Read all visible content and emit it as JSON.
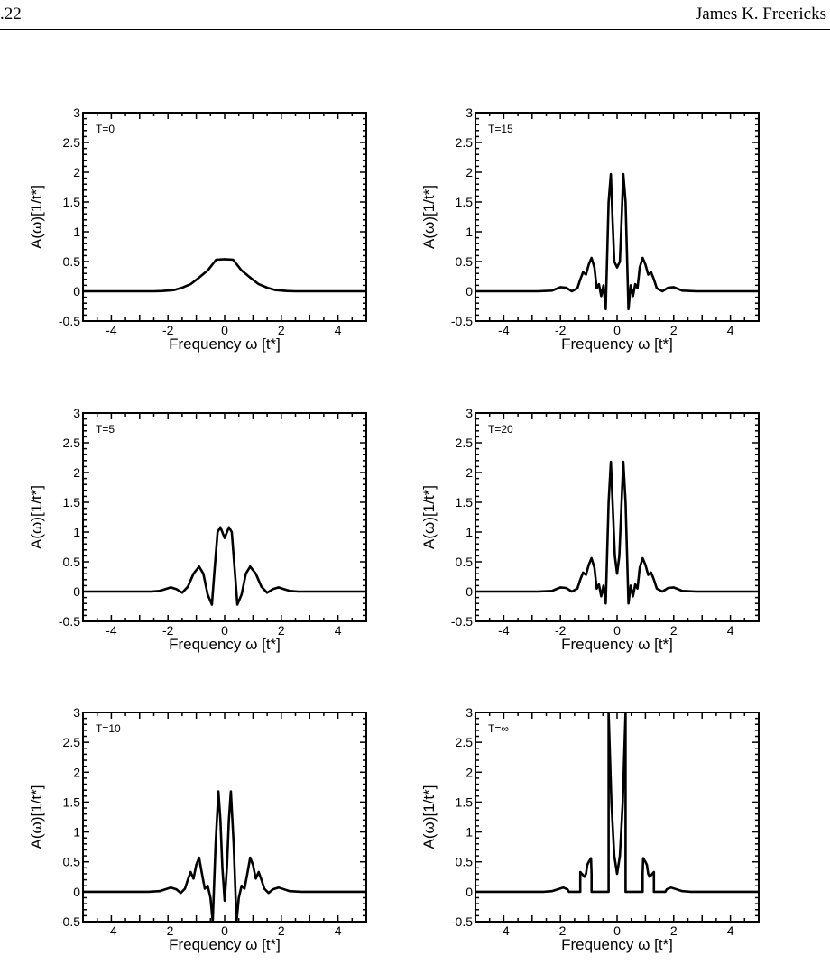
{
  "header": {
    "page_number": ".22",
    "author": "James K. Freericks"
  },
  "chart_data": [
    {
      "type": "line",
      "panel_label": "T=0",
      "xlabel": "Frequency ω [t*]",
      "ylabel": "A(ω)[1/t*]",
      "xlim": [
        -5,
        5
      ],
      "ylim": [
        -0.5,
        3
      ],
      "x_ticks": [
        "-4",
        "-2",
        "0",
        "2",
        "4"
      ],
      "y_ticks": [
        "-0.5",
        "0",
        "0.5",
        "1",
        "1.5",
        "2",
        "2.5",
        "3"
      ],
      "series": [
        {
          "x": [
            -5,
            -2.5,
            -2.2,
            -1.8,
            -1.5,
            -1.2,
            -0.9,
            -0.6,
            -0.3,
            0,
            0.3,
            0.6,
            0.9,
            1.2,
            1.5,
            1.8,
            2.2,
            2.5,
            5
          ],
          "y": [
            0,
            0,
            0.005,
            0.02,
            0.06,
            0.12,
            0.23,
            0.35,
            0.53,
            0.54,
            0.53,
            0.35,
            0.23,
            0.12,
            0.06,
            0.02,
            0.005,
            0,
            0
          ]
        }
      ]
    },
    {
      "type": "line",
      "panel_label": "T=15",
      "xlabel": "Frequency ω [t*]",
      "ylabel": "A(ω)[1/t*]",
      "xlim": [
        -5,
        5
      ],
      "ylim": [
        -0.5,
        3
      ],
      "x_ticks": [
        "-4",
        "-2",
        "0",
        "2",
        "4"
      ],
      "y_ticks": [
        "-0.5",
        "0",
        "0.5",
        "1",
        "1.5",
        "2",
        "2.5",
        "3"
      ],
      "series": [
        {
          "x": [
            -5,
            -2.8,
            -2.3,
            -2.2,
            -2,
            -1.8,
            -1.6,
            -1.4,
            -1.3,
            -1.2,
            -1.1,
            -1,
            -0.9,
            -0.8,
            -0.72,
            -0.64,
            -0.56,
            -0.48,
            -0.4,
            -0.3,
            -0.22,
            -0.16,
            -0.1,
            0,
            0.1,
            0.16,
            0.22,
            0.3,
            0.4,
            0.48,
            0.56,
            0.64,
            0.72,
            0.8,
            0.9,
            1,
            1.1,
            1.2,
            1.3,
            1.4,
            1.6,
            1.8,
            2,
            2.2,
            2.3,
            2.8,
            5
          ],
          "y": [
            0,
            0,
            0.01,
            0.03,
            0.07,
            0.06,
            0,
            0.05,
            0.2,
            0.32,
            0.28,
            0.45,
            0.56,
            0.4,
            0.05,
            0.12,
            -0.08,
            0.1,
            -0.3,
            1.5,
            1.97,
            1.2,
            0.5,
            0.4,
            0.5,
            1.2,
            1.97,
            1.5,
            -0.3,
            0.1,
            -0.08,
            0.12,
            0.05,
            0.4,
            0.56,
            0.45,
            0.28,
            0.32,
            0.2,
            0.05,
            0,
            0.06,
            0.07,
            0.03,
            0.01,
            0,
            0
          ]
        }
      ]
    },
    {
      "type": "line",
      "panel_label": "T=5",
      "xlabel": "Frequency ω [t*]",
      "ylabel": "A(ω)[1/t*]",
      "xlim": [
        -5,
        5
      ],
      "ylim": [
        -0.5,
        3
      ],
      "x_ticks": [
        "-4",
        "-2",
        "0",
        "2",
        "4"
      ],
      "y_ticks": [
        "-0.5",
        "0",
        "0.5",
        "1",
        "1.5",
        "2",
        "2.5",
        "3"
      ],
      "series": [
        {
          "x": [
            -5,
            -2.6,
            -2.3,
            -2.1,
            -1.9,
            -1.7,
            -1.5,
            -1.3,
            -1.1,
            -0.9,
            -0.75,
            -0.6,
            -0.45,
            -0.35,
            -0.25,
            -0.15,
            0,
            0.15,
            0.25,
            0.35,
            0.45,
            0.6,
            0.75,
            0.9,
            1.1,
            1.3,
            1.5,
            1.7,
            1.9,
            2.1,
            2.3,
            2.6,
            5
          ],
          "y": [
            0,
            0,
            0.01,
            0.04,
            0.07,
            0.04,
            -0.02,
            0.08,
            0.3,
            0.42,
            0.3,
            -0.05,
            -0.22,
            0.4,
            1.0,
            1.08,
            0.9,
            1.08,
            1.0,
            0.4,
            -0.22,
            -0.05,
            0.3,
            0.42,
            0.3,
            0.08,
            -0.02,
            0.04,
            0.07,
            0.04,
            0.01,
            0,
            0
          ]
        }
      ]
    },
    {
      "type": "line",
      "panel_label": "T=20",
      "xlabel": "Frequency ω [t*]",
      "ylabel": "A(ω)[1/t*]",
      "xlim": [
        -5,
        5
      ],
      "ylim": [
        -0.5,
        3
      ],
      "x_ticks": [
        "-4",
        "-2",
        "0",
        "2",
        "4"
      ],
      "y_ticks": [
        "-0.5",
        "0",
        "0.5",
        "1",
        "1.5",
        "2",
        "2.5",
        "3"
      ],
      "series": [
        {
          "x": [
            -5,
            -2.8,
            -2.3,
            -2.2,
            -2,
            -1.8,
            -1.6,
            -1.4,
            -1.3,
            -1.2,
            -1.1,
            -1,
            -0.9,
            -0.8,
            -0.72,
            -0.64,
            -0.56,
            -0.48,
            -0.4,
            -0.3,
            -0.22,
            -0.15,
            -0.08,
            0,
            0.08,
            0.15,
            0.22,
            0.3,
            0.4,
            0.48,
            0.56,
            0.64,
            0.72,
            0.8,
            0.9,
            1,
            1.1,
            1.2,
            1.3,
            1.4,
            1.6,
            1.8,
            2,
            2.2,
            2.3,
            2.8,
            5
          ],
          "y": [
            0,
            0,
            0.01,
            0.03,
            0.07,
            0.06,
            0,
            0.05,
            0.2,
            0.32,
            0.28,
            0.45,
            0.56,
            0.4,
            0.05,
            0.12,
            -0.08,
            0.1,
            -0.2,
            1.5,
            2.18,
            1.4,
            0.6,
            0.3,
            0.6,
            1.4,
            2.18,
            1.5,
            -0.2,
            0.1,
            -0.08,
            0.12,
            0.05,
            0.4,
            0.56,
            0.45,
            0.28,
            0.32,
            0.2,
            0.05,
            0,
            0.06,
            0.07,
            0.03,
            0.01,
            0,
            0
          ]
        }
      ]
    },
    {
      "type": "line",
      "panel_label": "T=10",
      "xlabel": "Frequency ω [t*]",
      "ylabel": "A(ω)[1/t*]",
      "xlim": [
        -5,
        5
      ],
      "ylim": [
        -0.5,
        3
      ],
      "x_ticks": [
        "-4",
        "-2",
        "0",
        "2",
        "4"
      ],
      "y_ticks": [
        "-0.5",
        "0",
        "0.5",
        "1",
        "1.5",
        "2",
        "2.5",
        "3"
      ],
      "series": [
        {
          "x": [
            -5,
            -2.7,
            -2.3,
            -2.1,
            -1.9,
            -1.7,
            -1.55,
            -1.4,
            -1.3,
            -1.2,
            -1.1,
            -1,
            -0.9,
            -0.8,
            -0.7,
            -0.6,
            -0.5,
            -0.42,
            -0.32,
            -0.22,
            -0.15,
            -0.08,
            0,
            0.08,
            0.15,
            0.22,
            0.32,
            0.42,
            0.5,
            0.6,
            0.7,
            0.8,
            0.9,
            1,
            1.1,
            1.2,
            1.3,
            1.4,
            1.55,
            1.7,
            1.9,
            2.1,
            2.3,
            2.7,
            5
          ],
          "y": [
            0,
            0,
            0.01,
            0.04,
            0.07,
            0.04,
            -0.02,
            0.05,
            0.2,
            0.33,
            0.22,
            0.45,
            0.57,
            0.3,
            0.05,
            0.1,
            -0.1,
            -0.5,
            0.8,
            1.68,
            1.2,
            0.4,
            -0.15,
            0.4,
            1.2,
            1.68,
            0.8,
            -0.5,
            -0.1,
            0.1,
            0.05,
            0.3,
            0.57,
            0.45,
            0.22,
            0.33,
            0.2,
            0.05,
            -0.02,
            0.04,
            0.07,
            0.04,
            0.01,
            0,
            0
          ]
        }
      ]
    },
    {
      "type": "line",
      "panel_label": "T=∞",
      "xlabel": "Frequency ω [t*]",
      "ylabel": "A(ω)[1/t*]",
      "xlim": [
        -5,
        5
      ],
      "ylim": [
        -0.5,
        3
      ],
      "x_ticks": [
        "-4",
        "-2",
        "0",
        "2",
        "4"
      ],
      "y_ticks": [
        "-0.5",
        "0",
        "0.5",
        "1",
        "1.5",
        "2",
        "2.5",
        "3"
      ],
      "series": [
        {
          "x": [
            -5,
            -2.6,
            -2.3,
            -2.1,
            -1.9,
            -1.75,
            -1.7,
            -1.3,
            -1.3,
            -1.15,
            -1.1,
            -1.05,
            -1.0,
            -0.92,
            -0.9,
            -0.9,
            -0.6,
            -0.3,
            -0.3,
            -0.2,
            -0.1,
            0,
            0.1,
            0.2,
            0.3,
            0.3,
            0.6,
            0.9,
            0.9,
            0.92,
            1.0,
            1.05,
            1.1,
            1.15,
            1.3,
            1.3,
            1.7,
            1.75,
            1.9,
            2.1,
            2.3,
            2.6,
            5
          ],
          "y": [
            0,
            0,
            0.01,
            0.04,
            0.07,
            0.04,
            0,
            0,
            0.33,
            0.25,
            0.3,
            0.45,
            0.5,
            0.56,
            0.3,
            0,
            0,
            0,
            3.0,
            1.5,
            0.6,
            0.3,
            0.6,
            1.5,
            3.0,
            0,
            0,
            0,
            0.3,
            0.56,
            0.5,
            0.45,
            0.3,
            0.25,
            0.33,
            0,
            0,
            0.04,
            0.07,
            0.04,
            0.01,
            0,
            0
          ]
        }
      ]
    }
  ]
}
